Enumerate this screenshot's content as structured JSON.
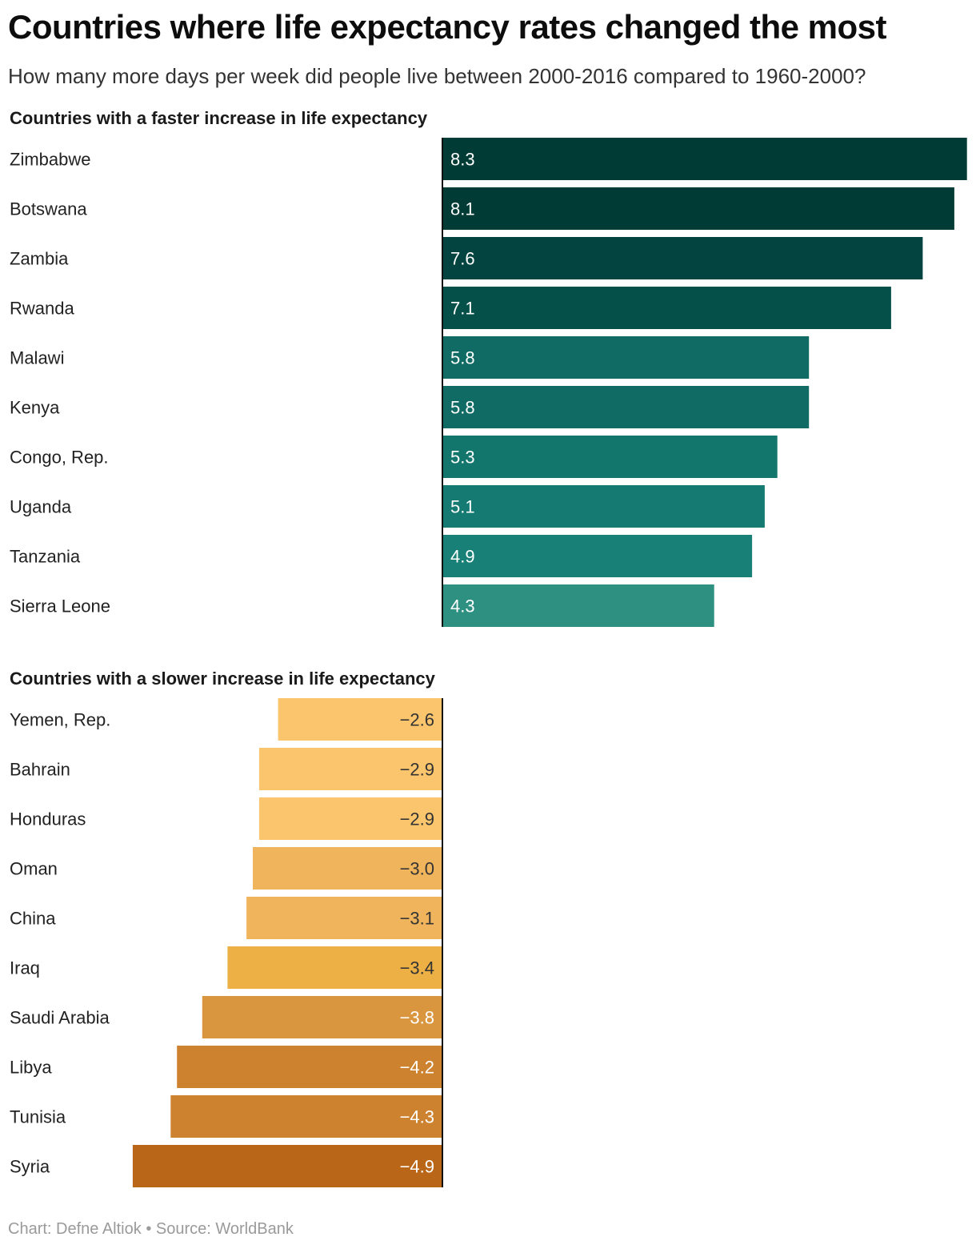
{
  "title": "Countries where life expectancy rates changed the most",
  "subtitle": "How many more days per week did people live between 2000-2016 compared to 1960-2000?",
  "footer": {
    "chart_by": "Chart: Defne Altiok",
    "separator": "•",
    "source": "Source: WorldBank"
  },
  "chart_data": [
    {
      "type": "bar",
      "orientation": "horizontal",
      "title": "Countries with a faster increase in life expectancy",
      "categories": [
        "Zimbabwe",
        "Botswana",
        "Zambia",
        "Rwanda",
        "Malawi",
        "Kenya",
        "Congo, Rep.",
        "Uganda",
        "Tanzania",
        "Sierra Leone"
      ],
      "values": [
        8.3,
        8.1,
        7.6,
        7.1,
        5.8,
        5.8,
        5.3,
        5.1,
        4.9,
        4.3
      ],
      "labels": [
        "8.3",
        "8.1",
        "7.6",
        "7.1",
        "5.8",
        "5.8",
        "5.3",
        "5.1",
        "4.9",
        "4.3"
      ],
      "colors": [
        "#003b35",
        "#003b35",
        "#034440",
        "#055048",
        "#0f6b63",
        "#0f6b63",
        "#13766d",
        "#157a71",
        "#188076",
        "#2e9080"
      ],
      "label_color": "#ffffff"
    },
    {
      "type": "bar",
      "orientation": "horizontal",
      "title": "Countries with a slower increase in life expectancy",
      "categories": [
        "Yemen, Rep.",
        "Bahrain",
        "Honduras",
        "Oman",
        "China",
        "Iraq",
        "Saudi Arabia",
        "Libya",
        "Tunisia",
        "Syria"
      ],
      "values": [
        -2.6,
        -2.9,
        -2.9,
        -3.0,
        -3.1,
        -3.4,
        -3.8,
        -4.2,
        -4.3,
        -4.9
      ],
      "labels": [
        "−2.6",
        "−2.9",
        "−2.9",
        "−3.0",
        "−3.1",
        "−3.4",
        "−3.8",
        "−4.2",
        "−4.3",
        "−4.9"
      ],
      "colors": [
        "#fbc56d",
        "#fbc56d",
        "#fbc56d",
        "#f0b45d",
        "#f0b45d",
        "#edb045",
        "#d9963e",
        "#cd8230",
        "#cd8230",
        "#ba6618"
      ],
      "label_colors": [
        "#333333",
        "#333333",
        "#333333",
        "#333333",
        "#333333",
        "#333333",
        "#ffffff",
        "#ffffff",
        "#ffffff",
        "#ffffff"
      ]
    }
  ]
}
